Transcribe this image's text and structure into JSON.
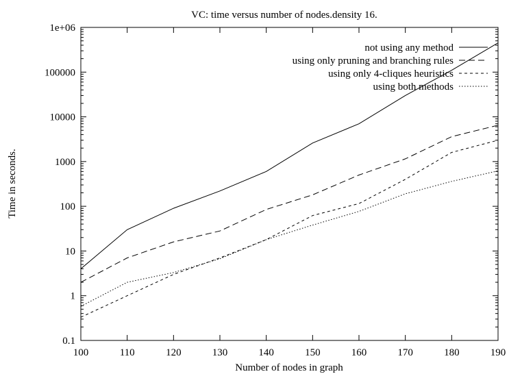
{
  "chart_data": {
    "type": "line",
    "title": "VC: time versus number of nodes.density 16.",
    "xlabel": "Number of nodes in graph",
    "ylabel": "Time in seconds.",
    "xlim": [
      100,
      190
    ],
    "ylim": [
      0.1,
      1000000
    ],
    "yscale": "log",
    "grid": false,
    "legend_position": "top-right",
    "x_ticks": [
      100,
      110,
      120,
      130,
      140,
      150,
      160,
      170,
      180,
      190
    ],
    "x_tick_labels": [
      "100",
      "110",
      "120",
      "130",
      "140",
      "150",
      "160",
      "170",
      "180",
      "190"
    ],
    "y_ticks": [
      0.1,
      1,
      10,
      100,
      1000,
      10000,
      100000,
      1000000
    ],
    "y_tick_labels": [
      "0.1",
      "1",
      "10",
      "100",
      "1000",
      "10000",
      "100000",
      "1e+06"
    ],
    "x": [
      100,
      110,
      120,
      130,
      140,
      150,
      160,
      170,
      180,
      190
    ],
    "series": [
      {
        "name": "not using any method",
        "dash": "",
        "values": [
          4,
          30,
          90,
          220,
          600,
          2600,
          7000,
          30000,
          110000,
          450000
        ]
      },
      {
        "name": "using only pruning and branching rules",
        "dash": "9,5",
        "values": [
          2,
          7,
          16,
          28,
          85,
          180,
          500,
          1150,
          3600,
          6500
        ]
      },
      {
        "name": "using only 4-cliques heuristics",
        "dash": "4,4",
        "values": [
          0.33,
          1.0,
          3.0,
          7.0,
          18,
          62,
          115,
          400,
          1600,
          3000
        ]
      },
      {
        "name": "using both methods",
        "dash": "1.5,2.5",
        "values": [
          0.58,
          2.0,
          3.3,
          6.7,
          18,
          38,
          77,
          190,
          360,
          620
        ]
      }
    ]
  }
}
